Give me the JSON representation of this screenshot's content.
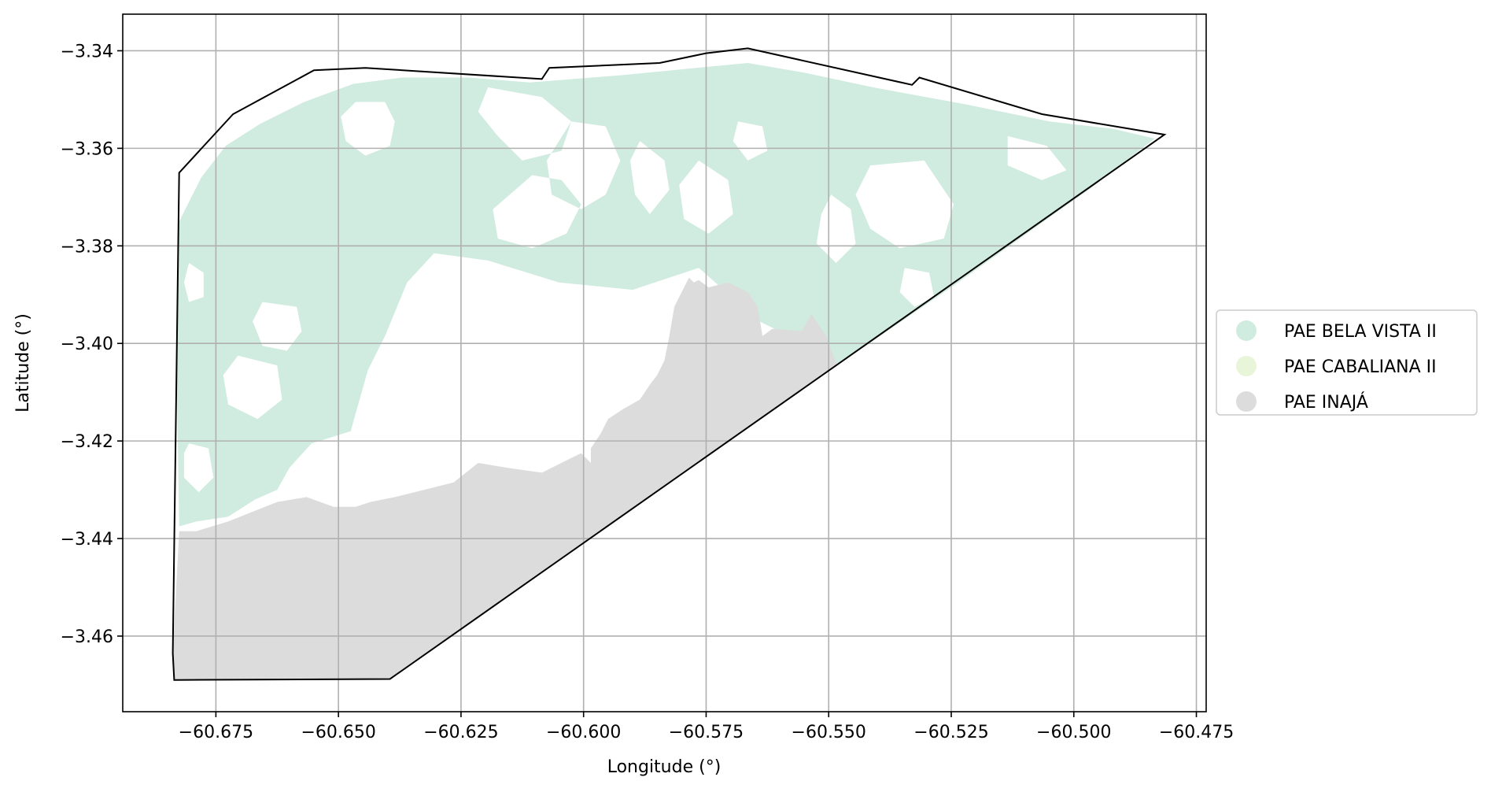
{
  "chart_data": {
    "type": "map",
    "xlabel": "Longitude (°)",
    "ylabel": "Latitude (°)",
    "xlim": [
      -60.694,
      -60.473
    ],
    "ylim": [
      -3.4755,
      -3.3325
    ],
    "grid": true,
    "legend_position": "right",
    "x_ticks": [
      -60.675,
      -60.65,
      -60.625,
      -60.6,
      -60.575,
      -60.55,
      -60.525,
      -60.5,
      -60.475
    ],
    "x_tick_labels": [
      "−60.675",
      "−60.650",
      "−60.625",
      "−60.600",
      "−60.575",
      "−60.550",
      "−60.525",
      "−60.500",
      "−60.475"
    ],
    "y_ticks": [
      -3.34,
      -3.36,
      -3.38,
      -3.4,
      -3.42,
      -3.44,
      -3.46
    ],
    "y_tick_labels": [
      "−3.34",
      "−3.36",
      "−3.38",
      "−3.40",
      "−3.42",
      "−3.44",
      "−3.46"
    ],
    "boundary": [
      [
        -60.6825,
        -3.365
      ],
      [
        -60.6715,
        -3.353
      ],
      [
        -60.655,
        -3.344
      ],
      [
        -60.6445,
        -3.3435
      ],
      [
        -60.6085,
        -3.3458
      ],
      [
        -60.607,
        -3.3435
      ],
      [
        -60.5845,
        -3.3425
      ],
      [
        -60.575,
        -3.3405
      ],
      [
        -60.5665,
        -3.3395
      ],
      [
        -60.533,
        -3.347
      ],
      [
        -60.5315,
        -3.3455
      ],
      [
        -60.5065,
        -3.353
      ],
      [
        -60.4815,
        -3.3572
      ],
      [
        -60.6395,
        -3.4688
      ],
      [
        -60.6835,
        -3.469
      ],
      [
        -60.6838,
        -3.4635
      ],
      [
        -60.6825,
        -3.365
      ]
    ],
    "series": [
      {
        "name": "PAE BELA VISTA II",
        "color": "#d0ebdf",
        "polygon": [
          [
            -60.6825,
            -3.375
          ],
          [
            -60.678,
            -3.366
          ],
          [
            -60.673,
            -3.3595
          ],
          [
            -60.666,
            -3.355
          ],
          [
            -60.657,
            -3.3505
          ],
          [
            -60.647,
            -3.3468
          ],
          [
            -60.637,
            -3.3455
          ],
          [
            -60.6235,
            -3.3455
          ],
          [
            -60.611,
            -3.3465
          ],
          [
            -60.592,
            -3.345
          ],
          [
            -60.577,
            -3.3435
          ],
          [
            -60.5665,
            -3.3425
          ],
          [
            -60.555,
            -3.3445
          ],
          [
            -60.541,
            -3.3475
          ],
          [
            -60.522,
            -3.351
          ],
          [
            -60.505,
            -3.3545
          ],
          [
            -60.492,
            -3.356
          ],
          [
            -60.4835,
            -3.358
          ],
          [
            -60.497,
            -3.3685
          ],
          [
            -60.525,
            -3.3885
          ],
          [
            -60.5483,
            -3.4045
          ],
          [
            -60.556,
            -3.3995
          ],
          [
            -60.5655,
            -3.3948
          ],
          [
            -60.572,
            -3.3885
          ],
          [
            -60.5765,
            -3.3845
          ],
          [
            -60.59,
            -3.389
          ],
          [
            -60.605,
            -3.3875
          ],
          [
            -60.6195,
            -3.383
          ],
          [
            -60.6305,
            -3.3815
          ],
          [
            -60.636,
            -3.3875
          ],
          [
            -60.6405,
            -3.3985
          ],
          [
            -60.644,
            -3.4055
          ],
          [
            -60.6475,
            -3.418
          ],
          [
            -60.6555,
            -3.4205
          ],
          [
            -60.66,
            -3.4255
          ],
          [
            -60.6625,
            -3.43
          ],
          [
            -60.667,
            -3.432
          ],
          [
            -60.6725,
            -3.4355
          ],
          [
            -60.679,
            -3.4365
          ],
          [
            -60.6825,
            -3.4375
          ],
          [
            -60.683,
            -3.405
          ],
          [
            -60.6825,
            -3.375
          ]
        ]
      },
      {
        "name": "PAE CABALIANA II",
        "color": "#e8f5d8",
        "polygon": []
      },
      {
        "name": "PAE INAJÁ",
        "color": "#dcdcdc",
        "polygon": [
          [
            -60.6835,
            -3.469
          ],
          [
            -60.6395,
            -3.4688
          ],
          [
            -60.5483,
            -3.4045
          ],
          [
            -60.5505,
            -3.3985
          ],
          [
            -60.5535,
            -3.394
          ],
          [
            -60.5555,
            -3.3975
          ],
          [
            -60.5615,
            -3.397
          ],
          [
            -60.5635,
            -3.3985
          ],
          [
            -60.5645,
            -3.3925
          ],
          [
            -60.5665,
            -3.3895
          ],
          [
            -60.5705,
            -3.3875
          ],
          [
            -60.5745,
            -3.3885
          ],
          [
            -60.5765,
            -3.387
          ],
          [
            -60.5775,
            -3.3875
          ],
          [
            -60.5785,
            -3.3865
          ],
          [
            -60.58,
            -3.3895
          ],
          [
            -60.5815,
            -3.3925
          ],
          [
            -60.5825,
            -3.3985
          ],
          [
            -60.5835,
            -3.4035
          ],
          [
            -60.585,
            -3.4065
          ],
          [
            -60.5865,
            -3.4085
          ],
          [
            -60.5885,
            -3.4115
          ],
          [
            -60.592,
            -3.4135
          ],
          [
            -60.595,
            -3.4155
          ],
          [
            -60.5965,
            -3.4185
          ],
          [
            -60.5985,
            -3.4215
          ],
          [
            -60.5985,
            -3.4245
          ],
          [
            -60.6005,
            -3.4225
          ],
          [
            -60.6025,
            -3.4235
          ],
          [
            -60.6085,
            -3.4265
          ],
          [
            -60.6155,
            -3.4255
          ],
          [
            -60.6215,
            -3.4245
          ],
          [
            -60.6265,
            -3.4285
          ],
          [
            -60.6345,
            -3.4305
          ],
          [
            -60.6385,
            -3.4315
          ],
          [
            -60.6435,
            -3.4325
          ],
          [
            -60.6465,
            -3.4335
          ],
          [
            -60.651,
            -3.4335
          ],
          [
            -60.6565,
            -3.4315
          ],
          [
            -60.6625,
            -3.4325
          ],
          [
            -60.6675,
            -3.4345
          ],
          [
            -60.6725,
            -3.4365
          ],
          [
            -60.679,
            -3.4385
          ],
          [
            -60.6825,
            -3.4385
          ],
          [
            -60.6838,
            -3.4635
          ],
          [
            -60.6835,
            -3.469
          ]
        ]
      }
    ],
    "holes": [
      [
        [
          -60.6465,
          -3.3505
        ],
        [
          -60.6405,
          -3.3505
        ],
        [
          -60.6385,
          -3.3545
        ],
        [
          -60.6395,
          -3.3595
        ],
        [
          -60.6445,
          -3.3615
        ],
        [
          -60.6485,
          -3.3585
        ],
        [
          -60.6495,
          -3.3535
        ],
        [
          -60.6465,
          -3.3505
        ]
      ],
      [
        [
          -60.6195,
          -3.3475
        ],
        [
          -60.6085,
          -3.3495
        ],
        [
          -60.6025,
          -3.3545
        ],
        [
          -60.6045,
          -3.3605
        ],
        [
          -60.6125,
          -3.3625
        ],
        [
          -60.6175,
          -3.3575
        ],
        [
          -60.6215,
          -3.3525
        ],
        [
          -60.6195,
          -3.3475
        ]
      ],
      [
        [
          -60.6025,
          -3.3545
        ],
        [
          -60.5955,
          -3.3555
        ],
        [
          -60.5925,
          -3.3625
        ],
        [
          -60.5955,
          -3.3695
        ],
        [
          -60.6005,
          -3.3725
        ],
        [
          -60.6065,
          -3.3695
        ],
        [
          -60.6075,
          -3.3625
        ],
        [
          -60.6025,
          -3.3545
        ]
      ],
      [
        [
          -60.6105,
          -3.3655
        ],
        [
          -60.6045,
          -3.3665
        ],
        [
          -60.6005,
          -3.3715
        ],
        [
          -60.6035,
          -3.3775
        ],
        [
          -60.6105,
          -3.3805
        ],
        [
          -60.6175,
          -3.3785
        ],
        [
          -60.6185,
          -3.3725
        ],
        [
          -60.6105,
          -3.3655
        ]
      ],
      [
        [
          -60.5885,
          -3.3585
        ],
        [
          -60.5835,
          -3.3625
        ],
        [
          -60.5825,
          -3.3685
        ],
        [
          -60.5865,
          -3.3735
        ],
        [
          -60.5895,
          -3.3695
        ],
        [
          -60.5905,
          -3.3625
        ],
        [
          -60.5885,
          -3.3585
        ]
      ],
      [
        [
          -60.5765,
          -3.3625
        ],
        [
          -60.5705,
          -3.3665
        ],
        [
          -60.5695,
          -3.3735
        ],
        [
          -60.5745,
          -3.3775
        ],
        [
          -60.5795,
          -3.3745
        ],
        [
          -60.5805,
          -3.3675
        ],
        [
          -60.5765,
          -3.3625
        ]
      ],
      [
        [
          -60.5685,
          -3.3545
        ],
        [
          -60.5635,
          -3.3555
        ],
        [
          -60.5625,
          -3.3605
        ],
        [
          -60.5665,
          -3.3625
        ],
        [
          -60.5695,
          -3.3585
        ],
        [
          -60.5685,
          -3.3545
        ]
      ],
      [
        [
          -60.5305,
          -3.3625
        ],
        [
          -60.5415,
          -3.3635
        ],
        [
          -60.5445,
          -3.3695
        ],
        [
          -60.5415,
          -3.3765
        ],
        [
          -60.5355,
          -3.3805
        ],
        [
          -60.5265,
          -3.3785
        ],
        [
          -60.5245,
          -3.3715
        ],
        [
          -60.5305,
          -3.3625
        ]
      ],
      [
        [
          -60.5495,
          -3.3695
        ],
        [
          -60.5455,
          -3.3725
        ],
        [
          -60.5445,
          -3.3795
        ],
        [
          -60.5485,
          -3.3835
        ],
        [
          -60.5525,
          -3.3795
        ],
        [
          -60.5515,
          -3.3735
        ],
        [
          -60.5495,
          -3.3695
        ]
      ],
      [
        [
          -60.5345,
          -3.3845
        ],
        [
          -60.5295,
          -3.3855
        ],
        [
          -60.5285,
          -3.3905
        ],
        [
          -60.5325,
          -3.3925
        ],
        [
          -60.5355,
          -3.3895
        ],
        [
          -60.5345,
          -3.3845
        ]
      ],
      [
        [
          -60.5135,
          -3.3575
        ],
        [
          -60.5055,
          -3.3595
        ],
        [
          -60.5015,
          -3.3645
        ],
        [
          -60.5065,
          -3.3665
        ],
        [
          -60.5135,
          -3.3635
        ],
        [
          -60.5135,
          -3.3575
        ]
      ],
      [
        [
          -60.6655,
          -3.3915
        ],
        [
          -60.6585,
          -3.3925
        ],
        [
          -60.6575,
          -3.3975
        ],
        [
          -60.6605,
          -3.4015
        ],
        [
          -60.6655,
          -3.4005
        ],
        [
          -60.6675,
          -3.3955
        ],
        [
          -60.6655,
          -3.3915
        ]
      ],
      [
        [
          -60.6705,
          -3.4025
        ],
        [
          -60.6625,
          -3.4045
        ],
        [
          -60.6615,
          -3.4115
        ],
        [
          -60.6665,
          -3.4155
        ],
        [
          -60.6725,
          -3.4125
        ],
        [
          -60.6735,
          -3.4065
        ],
        [
          -60.6705,
          -3.4025
        ]
      ],
      [
        [
          -60.6805,
          -3.3835
        ],
        [
          -60.6775,
          -3.3855
        ],
        [
          -60.6775,
          -3.3905
        ],
        [
          -60.6805,
          -3.3915
        ],
        [
          -60.6815,
          -3.3875
        ],
        [
          -60.6805,
          -3.3835
        ]
      ],
      [
        [
          -60.6805,
          -3.4205
        ],
        [
          -60.6765,
          -3.4215
        ],
        [
          -60.6755,
          -3.4275
        ],
        [
          -60.6785,
          -3.4305
        ],
        [
          -60.6815,
          -3.4275
        ],
        [
          -60.6815,
          -3.4225
        ],
        [
          -60.6805,
          -3.4205
        ]
      ]
    ]
  }
}
